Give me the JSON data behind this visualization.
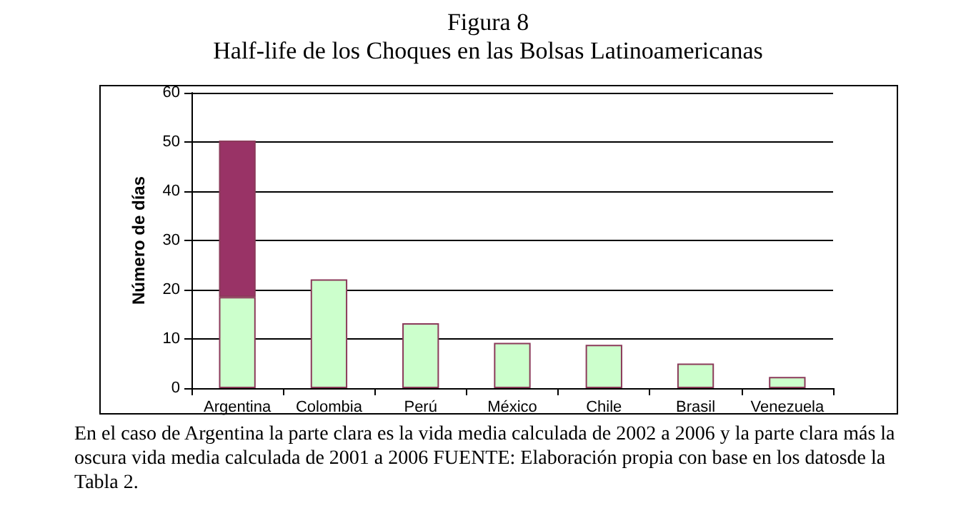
{
  "chart_data": {
    "type": "bar",
    "title": "Figura 8",
    "subtitle": "Half-life de los Choques en las Bolsas Latinoamericanas",
    "ylabel": "Número de días",
    "categories": [
      "Argentina",
      "Colombia",
      "Perú",
      "México",
      "Chile",
      "Brasil",
      "Venezuela"
    ],
    "stacked": true,
    "series": [
      {
        "color": "#ccffcc",
        "values": [
          18.5,
          22.1,
          13.2,
          9.2,
          8.8,
          5.0,
          2.3
        ]
      },
      {
        "color": "#993366",
        "values": [
          31.8,
          null,
          null,
          null,
          null,
          null,
          null
        ]
      }
    ],
    "ylim": [
      0,
      60
    ],
    "yticks": [
      0,
      10,
      20,
      30,
      40,
      50,
      60
    ],
    "grid": "y",
    "annotations": [
      "En el caso de Argentina la parte clara es la vida media calculada de 2002 a 2006 y la parte clara más la oscura vida media calculada de 2001 a 2006 FUENTE: Elaboración propia con base en los datosde la Tabla 2."
    ]
  }
}
